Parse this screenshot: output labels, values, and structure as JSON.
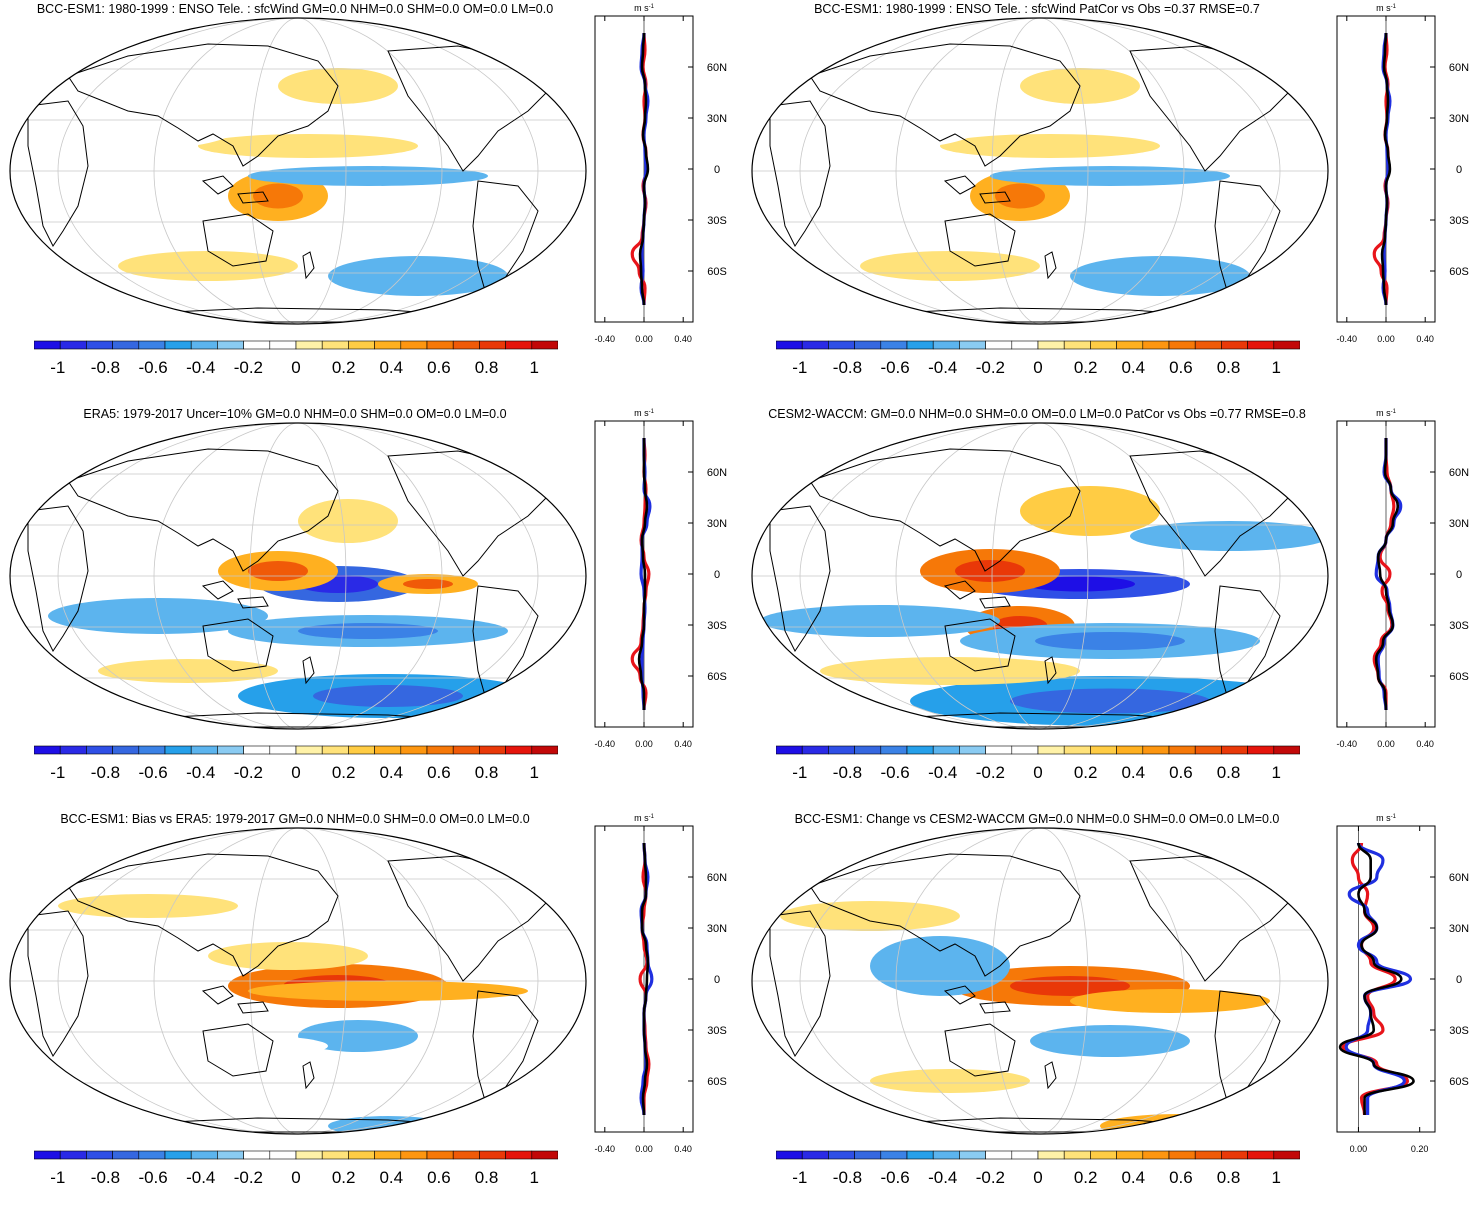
{
  "chart_data": [
    {
      "type": "map",
      "title": "BCC-ESM1: 1980-1999 : ENSO Tele. : sfcWind GM=0.0 NHM=0.0 SHM=0.0 OM=0.0 LM=0.0",
      "units": "m s-1",
      "colorbar": {
        "ticks": [
          "-1",
          "-0.8",
          "-0.6",
          "-0.4",
          "-0.2",
          "0",
          "0.2",
          "0.4",
          "0.6",
          "0.8",
          "1"
        ],
        "range": [
          -1.1,
          1.1
        ]
      },
      "profile": {
        "lat_labels": [
          "60N",
          "30N",
          "0",
          "30S",
          "60S"
        ],
        "x_ticks": [
          "-0.40",
          "0.00",
          "0.40"
        ],
        "xlim": [
          -0.5,
          0.5
        ],
        "lats": [
          80,
          70,
          60,
          50,
          40,
          30,
          20,
          10,
          0,
          -10,
          -20,
          -30,
          -40,
          -50,
          -60,
          -70,
          -80
        ],
        "series": [
          {
            "name": "red",
            "color": "#e8141a",
            "values": [
              0.0,
              0.01,
              -0.01,
              0.02,
              0.0,
              0.01,
              -0.01,
              0.02,
              0.03,
              -0.01,
              0.02,
              0.0,
              -0.02,
              -0.12,
              -0.05,
              0.01,
              0.0
            ]
          },
          {
            "name": "blue",
            "color": "#1f2fe0",
            "values": [
              0.0,
              -0.02,
              -0.03,
              0.01,
              0.04,
              0.02,
              0.0,
              0.01,
              0.02,
              0.0,
              0.01,
              0.0,
              -0.01,
              -0.02,
              -0.01,
              -0.03,
              0.0
            ]
          },
          {
            "name": "black",
            "color": "#000000",
            "values": [
              0.0,
              -0.01,
              -0.02,
              0.01,
              0.02,
              0.01,
              -0.01,
              0.02,
              0.04,
              0.0,
              0.01,
              0.0,
              -0.01,
              -0.04,
              -0.03,
              -0.02,
              0.0
            ]
          }
        ]
      }
    },
    {
      "type": "map",
      "title": "BCC-ESM1: 1980-1999 : ENSO Tele. : sfcWind PatCor vs Obs =0.37 RMSE=0.7",
      "units": "m s-1",
      "colorbar": {
        "ticks": [
          "-1",
          "-0.8",
          "-0.6",
          "-0.4",
          "-0.2",
          "0",
          "0.2",
          "0.4",
          "0.6",
          "0.8",
          "1"
        ],
        "range": [
          -1.1,
          1.1
        ]
      },
      "profile": {
        "lat_labels": [
          "60N",
          "30N",
          "0",
          "30S",
          "60S"
        ],
        "x_ticks": [
          "-0.40",
          "0.00",
          "0.40"
        ],
        "xlim": [
          -0.5,
          0.5
        ],
        "lats": [
          80,
          70,
          60,
          50,
          40,
          30,
          20,
          10,
          0,
          -10,
          -20,
          -30,
          -40,
          -50,
          -60,
          -70,
          -80
        ],
        "series": [
          {
            "name": "red",
            "color": "#e8141a",
            "values": [
              0.0,
              0.01,
              -0.01,
              0.02,
              0.0,
              0.01,
              -0.01,
              0.02,
              0.03,
              -0.01,
              0.02,
              0.0,
              -0.02,
              -0.12,
              -0.05,
              0.01,
              0.0
            ]
          },
          {
            "name": "blue",
            "color": "#1f2fe0",
            "values": [
              0.0,
              -0.02,
              -0.03,
              0.01,
              0.04,
              0.02,
              0.0,
              0.01,
              0.02,
              0.0,
              0.01,
              0.0,
              -0.01,
              -0.02,
              -0.01,
              -0.03,
              0.0
            ]
          },
          {
            "name": "black",
            "color": "#000000",
            "values": [
              0.0,
              -0.01,
              -0.02,
              0.01,
              0.02,
              0.01,
              -0.01,
              0.02,
              0.04,
              0.0,
              0.01,
              0.0,
              -0.01,
              -0.04,
              -0.03,
              -0.02,
              0.0
            ]
          }
        ]
      }
    },
    {
      "type": "map",
      "title": "ERA5: 1979-2017 Uncer=10% GM=0.0 NHM=0.0 SHM=0.0 OM=0.0 LM=0.0",
      "units": "m s-1",
      "colorbar": {
        "ticks": [
          "-1",
          "-0.8",
          "-0.6",
          "-0.4",
          "-0.2",
          "0",
          "0.2",
          "0.4",
          "0.6",
          "0.8",
          "1"
        ],
        "range": [
          -1.1,
          1.1
        ]
      },
      "profile": {
        "lat_labels": [
          "60N",
          "30N",
          "0",
          "30S",
          "60S"
        ],
        "x_ticks": [
          "-0.40",
          "0.00",
          "0.40"
        ],
        "xlim": [
          -0.5,
          0.5
        ],
        "lats": [
          80,
          70,
          60,
          50,
          40,
          30,
          20,
          10,
          0,
          -10,
          -20,
          -30,
          -40,
          -50,
          -60,
          -70,
          -80
        ],
        "series": [
          {
            "name": "red",
            "color": "#e8141a",
            "values": [
              0.0,
              0.01,
              0.0,
              0.02,
              0.01,
              0.0,
              -0.03,
              0.0,
              0.05,
              0.02,
              0.0,
              -0.01,
              -0.03,
              -0.12,
              -0.04,
              0.02,
              0.0
            ]
          },
          {
            "name": "blue",
            "color": "#1f2fe0",
            "values": [
              0.0,
              0.0,
              0.01,
              0.0,
              0.06,
              0.03,
              -0.02,
              -0.02,
              -0.03,
              0.0,
              0.01,
              0.0,
              -0.01,
              -0.02,
              -0.02,
              -0.01,
              0.0
            ]
          },
          {
            "name": "black",
            "color": "#000000",
            "values": [
              0.0,
              0.0,
              0.0,
              0.01,
              0.03,
              0.01,
              -0.02,
              -0.01,
              0.01,
              0.01,
              0.0,
              0.0,
              -0.02,
              -0.05,
              -0.03,
              0.0,
              0.0
            ]
          }
        ]
      }
    },
    {
      "type": "map",
      "title": "CESM2-WACCM: GM=0.0 NHM=0.0 SHM=0.0 OM=0.0 LM=0.0 PatCor vs Obs =0.77 RMSE=0.8",
      "units": "m s-1",
      "colorbar": {
        "ticks": [
          "-1",
          "-0.8",
          "-0.6",
          "-0.4",
          "-0.2",
          "0",
          "0.2",
          "0.4",
          "0.6",
          "0.8",
          "1"
        ],
        "range": [
          -1.1,
          1.1
        ]
      },
      "profile": {
        "lat_labels": [
          "60N",
          "30N",
          "0",
          "30S",
          "60S"
        ],
        "x_ticks": [
          "-0.40",
          "0.00",
          "0.40"
        ],
        "xlim": [
          -0.5,
          0.5
        ],
        "lats": [
          80,
          70,
          60,
          50,
          40,
          30,
          20,
          10,
          0,
          -10,
          -20,
          -30,
          -40,
          -50,
          -60,
          -70,
          -80
        ],
        "series": [
          {
            "name": "red",
            "color": "#e8141a",
            "values": [
              0.0,
              0.0,
              0.01,
              0.05,
              0.08,
              0.05,
              0.0,
              -0.06,
              0.04,
              -0.04,
              0.02,
              0.06,
              -0.05,
              -0.12,
              -0.08,
              0.0,
              0.0
            ]
          },
          {
            "name": "blue",
            "color": "#1f2fe0",
            "values": [
              0.0,
              0.0,
              -0.02,
              0.05,
              0.15,
              0.08,
              0.0,
              -0.08,
              -0.1,
              0.01,
              0.04,
              0.07,
              -0.02,
              -0.08,
              -0.07,
              -0.02,
              0.0
            ]
          },
          {
            "name": "black",
            "color": "#000000",
            "values": [
              0.0,
              0.0,
              -0.01,
              0.05,
              0.12,
              0.07,
              0.0,
              -0.08,
              -0.06,
              0.0,
              0.03,
              0.07,
              -0.03,
              -0.1,
              -0.08,
              -0.01,
              0.0
            ]
          }
        ]
      }
    },
    {
      "type": "map",
      "title": "BCC-ESM1: Bias vs ERA5: 1979-2017 GM=0.0 NHM=0.0 SHM=0.0 OM=0.0 LM=0.0",
      "units": "m s-1",
      "colorbar": {
        "ticks": [
          "-1",
          "-0.8",
          "-0.6",
          "-0.4",
          "-0.2",
          "0",
          "0.2",
          "0.4",
          "0.6",
          "0.8",
          "1"
        ],
        "range": [
          -1.1,
          1.1
        ]
      },
      "profile": {
        "lat_labels": [
          "60N",
          "30N",
          "0",
          "30S",
          "60S"
        ],
        "x_ticks": [
          "-0.40",
          "0.00",
          "0.40"
        ],
        "xlim": [
          -0.5,
          0.5
        ],
        "lats": [
          80,
          70,
          60,
          50,
          40,
          30,
          20,
          10,
          0,
          -10,
          -20,
          -30,
          -40,
          -50,
          -60,
          -70,
          -80
        ],
        "series": [
          {
            "name": "red",
            "color": "#e8141a",
            "values": [
              0.0,
              0.01,
              -0.01,
              0.02,
              0.0,
              -0.02,
              0.0,
              0.03,
              -0.04,
              0.02,
              0.0,
              0.01,
              0.02,
              0.05,
              0.03,
              0.0,
              0.0
            ]
          },
          {
            "name": "blue",
            "color": "#1f2fe0",
            "values": [
              0.0,
              0.01,
              0.04,
              0.02,
              -0.03,
              -0.02,
              0.03,
              0.04,
              0.08,
              0.02,
              0.0,
              0.0,
              0.01,
              0.02,
              -0.01,
              -0.03,
              0.0
            ]
          },
          {
            "name": "black",
            "color": "#000000",
            "values": [
              0.0,
              0.01,
              0.02,
              0.02,
              -0.02,
              -0.02,
              0.02,
              0.04,
              0.03,
              0.02,
              0.0,
              0.0,
              0.01,
              0.03,
              0.01,
              -0.01,
              0.0
            ]
          }
        ]
      }
    },
    {
      "type": "map",
      "title": "BCC-ESM1: Change vs CESM2-WACCM GM=0.0 NHM=0.0 SHM=0.0 OM=0.0 LM=0.0",
      "units": "m s-1",
      "colorbar": {
        "ticks": [
          "-1",
          "-0.8",
          "-0.6",
          "-0.4",
          "-0.2",
          "0",
          "0.2",
          "0.4",
          "0.6",
          "0.8",
          "1"
        ],
        "range": [
          -1.1,
          1.1
        ]
      },
      "profile": {
        "lat_labels": [
          "60N",
          "30N",
          "0",
          "30S",
          "60S"
        ],
        "x_ticks": [
          "0.00",
          "0.20"
        ],
        "xlim": [
          -0.07,
          0.25
        ],
        "lats": [
          80,
          70,
          60,
          50,
          40,
          30,
          20,
          10,
          0,
          -10,
          -20,
          -30,
          -40,
          -50,
          -60,
          -70,
          -80
        ],
        "series": [
          {
            "name": "red",
            "color": "#e8141a",
            "values": [
              0.01,
              -0.02,
              0.0,
              0.03,
              0.02,
              0.05,
              0.01,
              0.04,
              0.12,
              0.03,
              0.05,
              0.08,
              -0.05,
              0.06,
              0.16,
              0.01,
              0.02
            ]
          },
          {
            "name": "blue",
            "color": "#1f2fe0",
            "values": [
              0.0,
              0.08,
              0.06,
              -0.03,
              0.03,
              0.06,
              0.0,
              0.06,
              0.17,
              0.02,
              0.04,
              0.03,
              -0.04,
              0.05,
              0.15,
              0.03,
              0.03
            ]
          },
          {
            "name": "black",
            "color": "#000000",
            "values": [
              0.0,
              0.04,
              0.04,
              0.0,
              0.02,
              0.06,
              0.01,
              0.05,
              0.14,
              0.02,
              0.04,
              0.05,
              -0.06,
              0.05,
              0.18,
              0.02,
              0.02
            ]
          }
        ]
      }
    }
  ]
}
